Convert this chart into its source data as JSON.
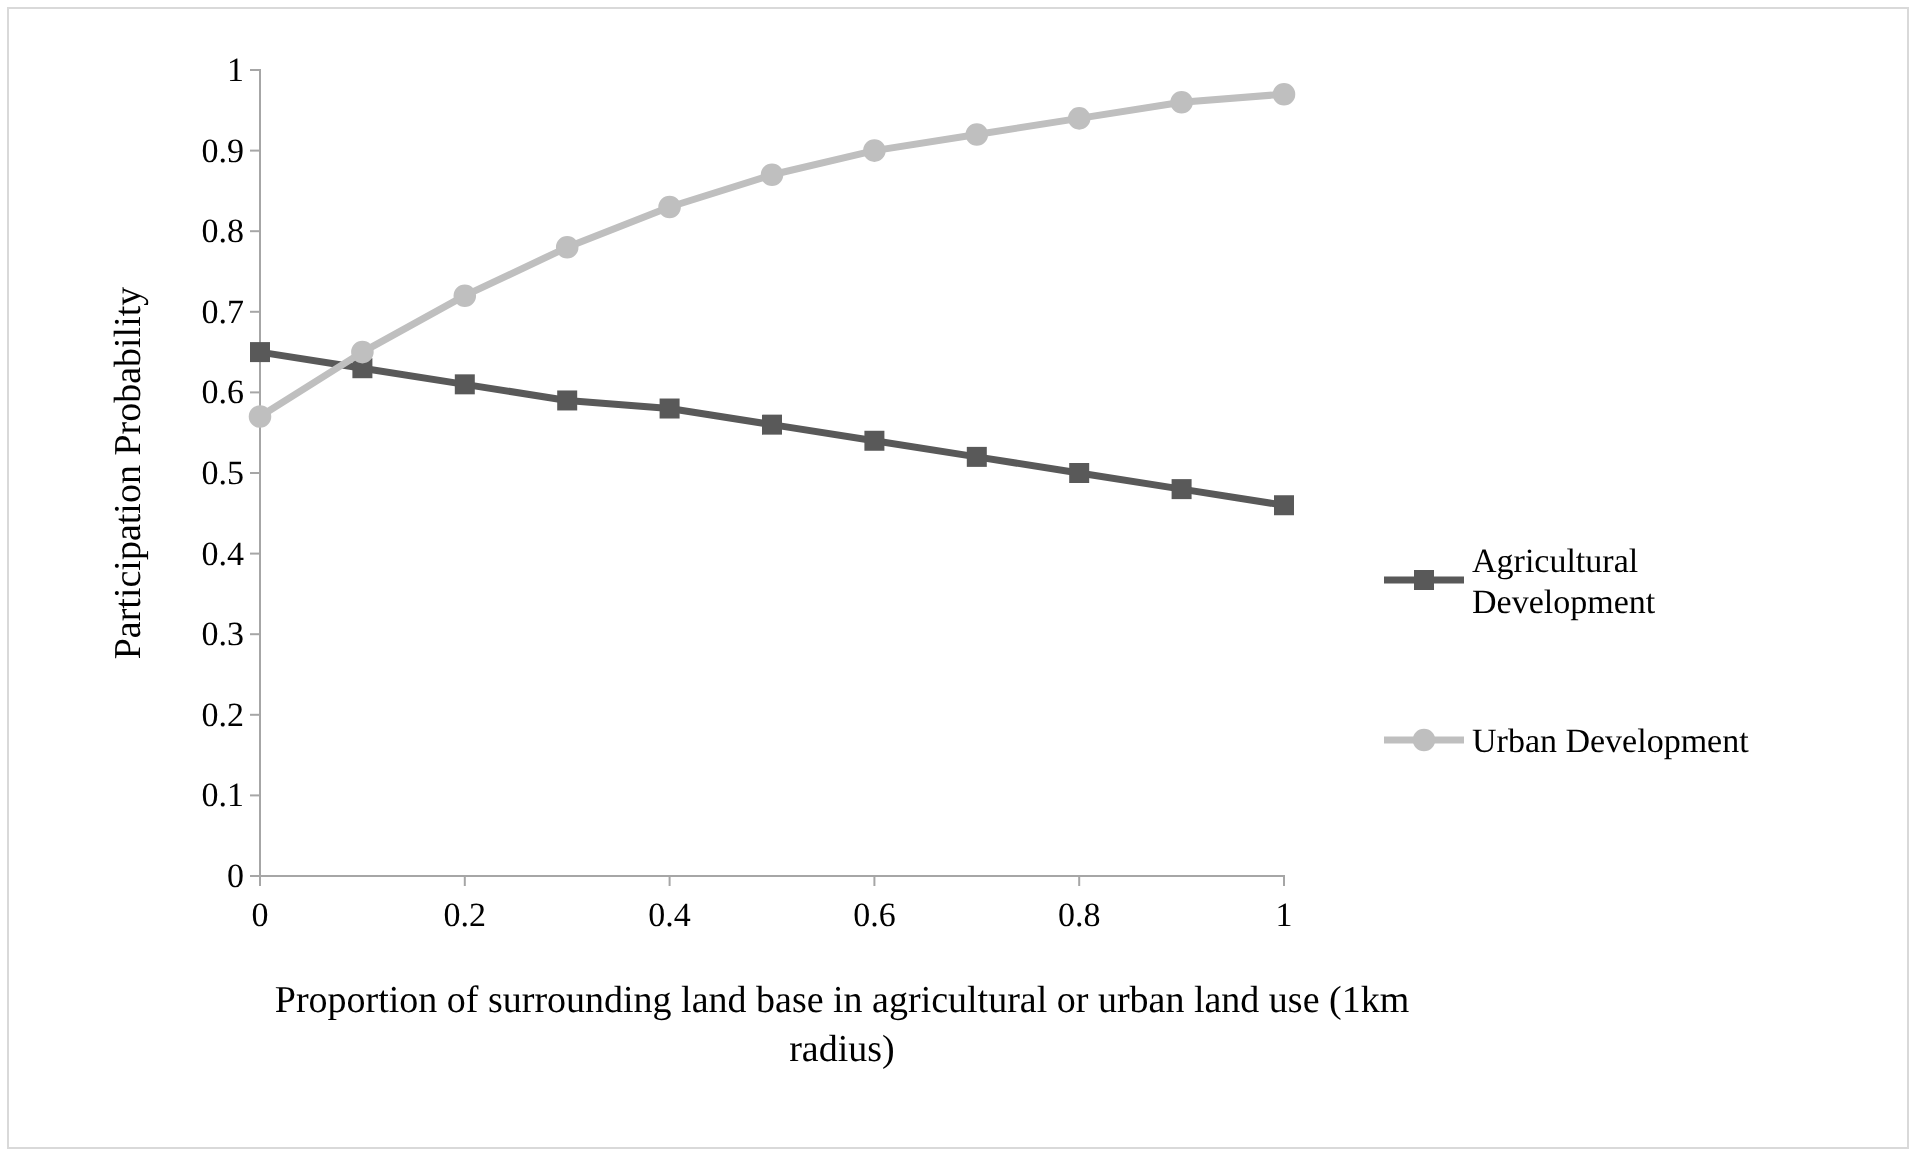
{
  "chart_data": {
    "type": "line",
    "xlabel": "Proportion of surrounding land base in agricultural or urban land use (1km radius)",
    "ylabel": "Participation Probability",
    "x": [
      0,
      0.1,
      0.2,
      0.3,
      0.4,
      0.5,
      0.6,
      0.7,
      0.8,
      0.9,
      1
    ],
    "series": [
      {
        "name": "Agricultural Development",
        "color": "#595959",
        "marker": "square",
        "values": [
          0.65,
          0.63,
          0.61,
          0.59,
          0.58,
          0.56,
          0.54,
          0.52,
          0.5,
          0.48,
          0.46
        ]
      },
      {
        "name": "Urban Development",
        "color": "#bfbfbf",
        "marker": "circle",
        "values": [
          0.57,
          0.65,
          0.72,
          0.78,
          0.83,
          0.87,
          0.9,
          0.92,
          0.94,
          0.96,
          0.97
        ]
      }
    ],
    "xlim": [
      0,
      1
    ],
    "xticks": [
      0,
      0.2,
      0.4,
      0.6,
      0.8,
      1
    ],
    "ylim": [
      0,
      1
    ],
    "yticks": [
      0,
      0.1,
      0.2,
      0.3,
      0.4,
      0.5,
      0.6,
      0.7,
      0.8,
      0.9,
      1
    ],
    "grid": false,
    "legend": "right",
    "line_style": "solid"
  }
}
